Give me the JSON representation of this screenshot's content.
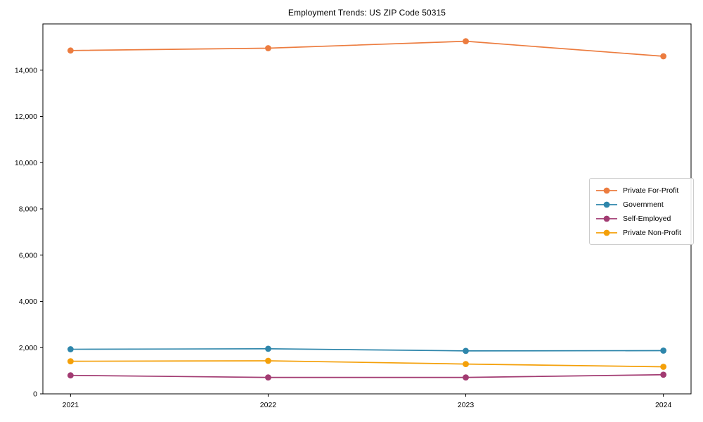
{
  "chart_data": {
    "type": "line",
    "title": "Employment Trends: US ZIP Code 50315",
    "x": [
      2021,
      2022,
      2023,
      2024
    ],
    "x_tick_labels": [
      "2021",
      "2022",
      "2023",
      "2024"
    ],
    "series": [
      {
        "name": "Private For-Profit",
        "color": "#EC7C3F",
        "values": [
          14850,
          14950,
          15250,
          14600
        ]
      },
      {
        "name": "Government",
        "color": "#2E86AB",
        "values": [
          1930,
          1950,
          1860,
          1870
        ]
      },
      {
        "name": "Self-Employed",
        "color": "#A23B72",
        "values": [
          800,
          710,
          710,
          830
        ]
      },
      {
        "name": "Private Non-Profit",
        "color": "#F4A009",
        "values": [
          1410,
          1430,
          1290,
          1170
        ]
      }
    ],
    "ylim": [
      0,
      16000
    ],
    "yticks": [
      0,
      2000,
      4000,
      6000,
      8000,
      10000,
      12000,
      14000
    ],
    "ytick_labels": [
      "0",
      "2,000",
      "4,000",
      "6,000",
      "8,000",
      "10,000",
      "12,000",
      "14,000"
    ],
    "grid": false,
    "legend_position": "center right",
    "marker": "circle",
    "background_color": "#ffffff",
    "axis_color": "#000000",
    "text_color": "#000000",
    "legend_border_color": "#cccccc"
  }
}
